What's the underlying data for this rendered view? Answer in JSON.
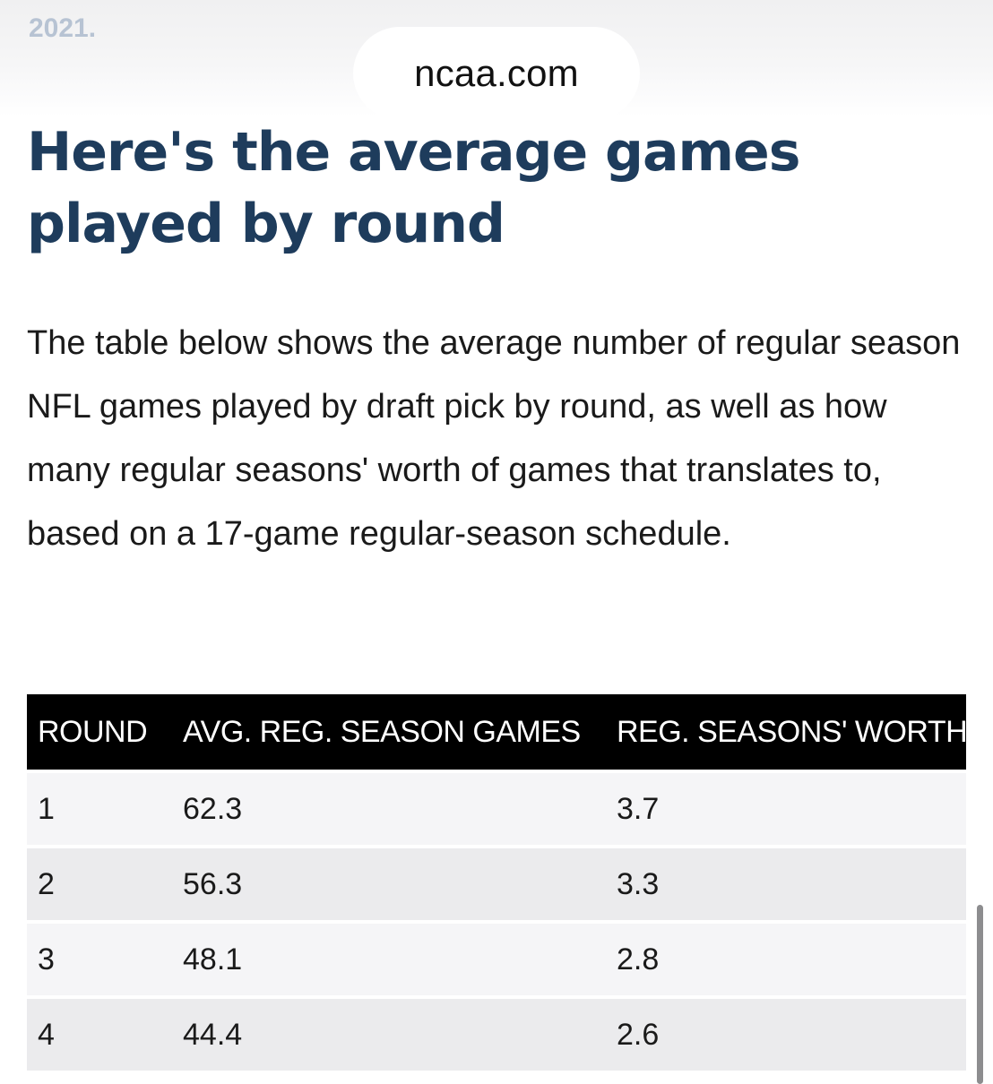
{
  "browser": {
    "url": "ncaa.com"
  },
  "article": {
    "prev_text": "2021.",
    "headline": "Here's the average games played by round",
    "intro": "The table below shows the average number of regular season NFL games played by draft pick by round, as well as how many regular seasons' worth of games that translates to, based on a 17-game regular-season schedule."
  },
  "table": {
    "headers": [
      "ROUND",
      "AVG. REG. SEASON GAMES",
      "REG. SEASONS' WORTH"
    ],
    "rows": [
      [
        "1",
        "62.3",
        "3.7"
      ],
      [
        "2",
        "56.3",
        "3.3"
      ],
      [
        "3",
        "48.1",
        "2.8"
      ],
      [
        "4",
        "44.4",
        "2.6"
      ]
    ]
  }
}
